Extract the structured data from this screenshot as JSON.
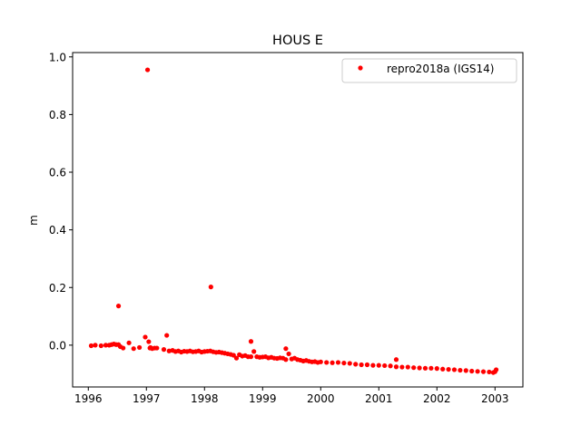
{
  "chart_data": {
    "type": "scatter",
    "title": "HOUS E",
    "xlabel": "",
    "ylabel": "m",
    "xlim": [
      1995.73,
      2003.48
    ],
    "ylim": [
      -0.145,
      1.015
    ],
    "xticks": [
      1996,
      1997,
      1998,
      1999,
      2000,
      2001,
      2002,
      2003
    ],
    "xtick_labels": [
      "1996",
      "1997",
      "1998",
      "1999",
      "2000",
      "2001",
      "2002",
      "2003"
    ],
    "yticks": [
      0.0,
      0.2,
      0.4,
      0.6,
      0.8,
      1.0
    ],
    "ytick_labels": [
      "0.0",
      "0.2",
      "0.4",
      "0.6",
      "0.8",
      "1.0"
    ],
    "grid": false,
    "legend": {
      "position": "upper right"
    },
    "series": [
      {
        "name": "repro2018a (IGS14)",
        "color": "#ff0000",
        "marker": "circle",
        "x": [
          1996.05,
          1996.12,
          1996.22,
          1996.3,
          1996.36,
          1996.4,
          1996.44,
          1996.48,
          1996.52,
          1996.55,
          1996.6,
          1996.52,
          1996.7,
          1996.78,
          1996.88,
          1996.98,
          1997.02,
          1997.04,
          1997.06,
          1997.07,
          1997.1,
          1997.14,
          1997.18,
          1997.3,
          1997.35,
          1997.39,
          1997.45,
          1997.5,
          1997.55,
          1997.6,
          1997.65,
          1997.7,
          1997.75,
          1997.8,
          1997.85,
          1997.9,
          1997.95,
          1998.0,
          1998.05,
          1998.1,
          1998.11,
          1998.15,
          1998.2,
          1998.25,
          1998.3,
          1998.35,
          1998.4,
          1998.45,
          1998.5,
          1998.55,
          1998.6,
          1998.65,
          1998.7,
          1998.75,
          1998.8,
          1998.8,
          1998.85,
          1998.9,
          1998.95,
          1999.0,
          1999.05,
          1999.1,
          1999.15,
          1999.2,
          1999.25,
          1999.3,
          1999.35,
          1999.4,
          1999.4,
          1999.45,
          1999.5,
          1999.55,
          1999.6,
          1999.65,
          1999.7,
          1999.75,
          1999.8,
          1999.85,
          1999.9,
          1999.95,
          2000.0,
          2000.1,
          2000.2,
          2000.3,
          2000.4,
          2000.5,
          2000.6,
          2000.7,
          2000.8,
          2000.9,
          2001.0,
          2001.1,
          2001.2,
          2001.3,
          2001.3,
          2001.4,
          2001.5,
          2001.6,
          2001.7,
          2001.8,
          2001.9,
          2002.0,
          2002.1,
          2002.2,
          2002.3,
          2002.4,
          2002.5,
          2002.6,
          2002.7,
          2002.8,
          2002.9,
          2002.97,
          2003.0,
          2003.02
        ],
        "y": [
          -0.002,
          0.0,
          -0.002,
          0.0,
          0.0,
          0.002,
          0.004,
          0.002,
          0.136,
          -0.005,
          -0.01,
          0.002,
          0.008,
          -0.012,
          -0.008,
          0.028,
          0.955,
          0.012,
          -0.01,
          -0.008,
          -0.012,
          -0.01,
          -0.01,
          -0.015,
          0.034,
          -0.02,
          -0.018,
          -0.022,
          -0.02,
          -0.024,
          -0.021,
          -0.022,
          -0.02,
          -0.023,
          -0.022,
          -0.02,
          -0.024,
          -0.022,
          -0.021,
          -0.02,
          0.202,
          -0.023,
          -0.025,
          -0.024,
          -0.026,
          -0.028,
          -0.03,
          -0.032,
          -0.035,
          -0.045,
          -0.033,
          -0.038,
          -0.036,
          -0.04,
          0.013,
          -0.04,
          -0.022,
          -0.04,
          -0.042,
          -0.041,
          -0.04,
          -0.044,
          -0.042,
          -0.045,
          -0.046,
          -0.044,
          -0.045,
          -0.012,
          -0.05,
          -0.03,
          -0.048,
          -0.045,
          -0.05,
          -0.052,
          -0.055,
          -0.053,
          -0.056,
          -0.058,
          -0.057,
          -0.06,
          -0.058,
          -0.06,
          -0.061,
          -0.06,
          -0.062,
          -0.063,
          -0.066,
          -0.068,
          -0.068,
          -0.07,
          -0.07,
          -0.071,
          -0.072,
          -0.075,
          -0.05,
          -0.076,
          -0.076,
          -0.078,
          -0.079,
          -0.08,
          -0.08,
          -0.081,
          -0.083,
          -0.084,
          -0.085,
          -0.087,
          -0.088,
          -0.09,
          -0.091,
          -0.092,
          -0.093,
          -0.095,
          -0.092,
          -0.085
        ]
      }
    ]
  }
}
